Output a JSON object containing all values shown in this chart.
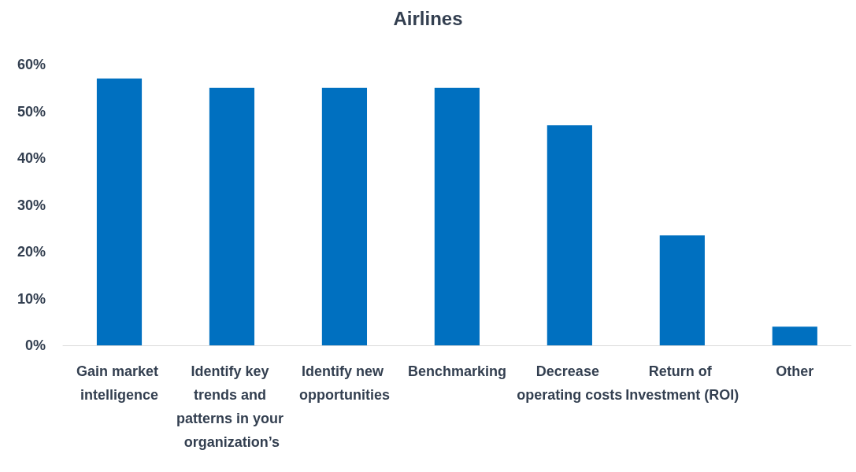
{
  "chart_data": {
    "type": "bar",
    "title": "Airlines",
    "categories": [
      "Gain market intelligence",
      "Identify key trends and patterns in your organization’s",
      "Identify new opportunities",
      "Benchmarking",
      "Decrease operating costs",
      "Return of Investment (ROI)",
      "Other"
    ],
    "values": [
      57,
      55,
      55,
      55,
      47,
      23.5,
      4
    ],
    "color": "#0070c0",
    "ylim": [
      0,
      60
    ],
    "yticks": [
      {
        "value": 0,
        "label": "0%"
      },
      {
        "value": 10,
        "label": "10%"
      },
      {
        "value": 20,
        "label": "20%"
      },
      {
        "value": 30,
        "label": "30%"
      },
      {
        "value": 40,
        "label": "40%"
      },
      {
        "value": 50,
        "label": "50%"
      },
      {
        "value": 60,
        "label": "60%"
      }
    ],
    "grid": false
  }
}
